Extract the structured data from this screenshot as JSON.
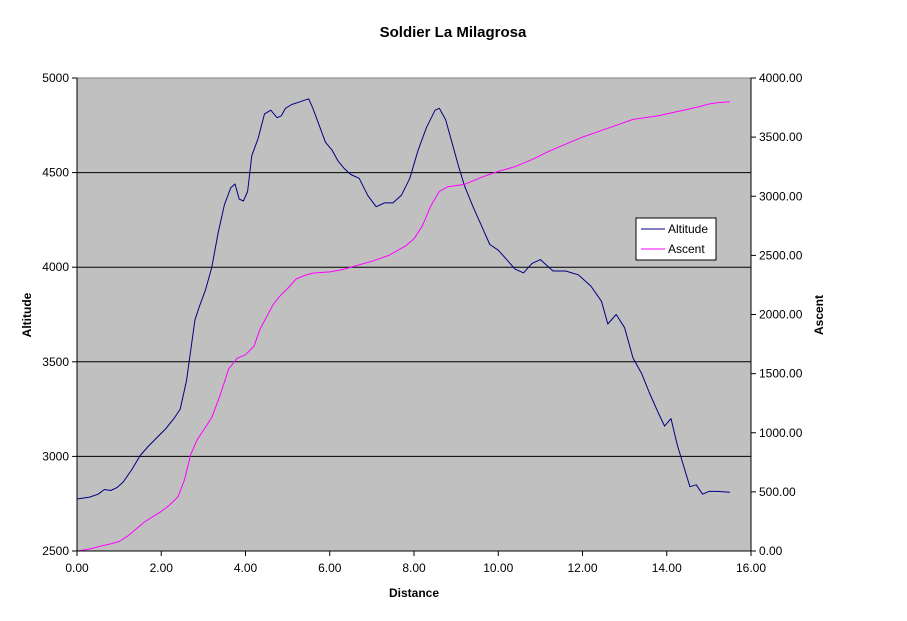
{
  "chart_data": {
    "type": "line",
    "title": "Soldier La Milagrosa",
    "xlabel": "Distance",
    "ylabel_left": "Altitude",
    "ylabel_right": "Ascent",
    "xlim": [
      0,
      16
    ],
    "ylim_left": [
      2500,
      5000
    ],
    "ylim_right": [
      0,
      4000
    ],
    "x_ticks": [
      "0.00",
      "2.00",
      "4.00",
      "6.00",
      "8.00",
      "10.00",
      "12.00",
      "14.00",
      "16.00"
    ],
    "y_left_ticks": [
      "2500",
      "3000",
      "3500",
      "4000",
      "4500",
      "5000"
    ],
    "y_right_ticks": [
      "0.00",
      "500.00",
      "1000.00",
      "1500.00",
      "2000.00",
      "2500.00",
      "3000.00",
      "3500.00",
      "4000.00"
    ],
    "plot_background": "#c0c0c0",
    "grid": "horizontal major lines on left axis",
    "legend_position": "right",
    "series": [
      {
        "name": "Altitude",
        "axis": "left",
        "color": "#000080",
        "x": [
          0,
          0.3,
          0.5,
          0.65,
          0.8,
          0.95,
          1.1,
          1.3,
          1.5,
          1.7,
          1.9,
          2.1,
          2.3,
          2.45,
          2.6,
          2.7,
          2.8,
          2.9,
          3.05,
          3.2,
          3.35,
          3.5,
          3.65,
          3.75,
          3.85,
          3.95,
          4.05,
          4.15,
          4.3,
          4.45,
          4.6,
          4.75,
          4.85,
          4.95,
          5.1,
          5.3,
          5.5,
          5.6,
          5.75,
          5.9,
          6.05,
          6.2,
          6.35,
          6.5,
          6.7,
          6.9,
          7.1,
          7.3,
          7.5,
          7.7,
          7.9,
          8.1,
          8.3,
          8.5,
          8.6,
          8.75,
          8.9,
          9.05,
          9.2,
          9.4,
          9.6,
          9.8,
          10.0,
          10.2,
          10.4,
          10.6,
          10.8,
          11.0,
          11.3,
          11.6,
          11.9,
          12.2,
          12.45,
          12.6,
          12.8,
          13.0,
          13.2,
          13.4,
          13.6,
          13.8,
          13.95,
          14.1,
          14.25,
          14.4,
          14.55,
          14.7,
          14.85,
          15.0,
          15.2,
          15.5
        ],
        "values": [
          2775,
          2785,
          2800,
          2825,
          2820,
          2835,
          2865,
          2930,
          3005,
          3055,
          3100,
          3145,
          3200,
          3250,
          3400,
          3560,
          3720,
          3790,
          3880,
          4000,
          4180,
          4330,
          4420,
          4440,
          4360,
          4350,
          4400,
          4590,
          4680,
          4810,
          4830,
          4790,
          4800,
          4840,
          4860,
          4875,
          4890,
          4840,
          4750,
          4660,
          4620,
          4560,
          4520,
          4490,
          4470,
          4380,
          4320,
          4340,
          4340,
          4380,
          4470,
          4620,
          4740,
          4830,
          4840,
          4780,
          4660,
          4540,
          4430,
          4320,
          4220,
          4120,
          4090,
          4040,
          3990,
          3970,
          4020,
          4040,
          3980,
          3980,
          3960,
          3900,
          3820,
          3700,
          3750,
          3680,
          3520,
          3440,
          3330,
          3230,
          3160,
          3200,
          3060,
          2950,
          2840,
          2850,
          2800,
          2815,
          2815,
          2810
        ]
      },
      {
        "name": "Ascent",
        "axis": "right",
        "color": "#ff00ff",
        "x": [
          0,
          0.2,
          0.4,
          0.6,
          0.8,
          1.0,
          1.2,
          1.4,
          1.6,
          1.8,
          2.0,
          2.2,
          2.4,
          2.55,
          2.7,
          2.85,
          3.0,
          3.2,
          3.4,
          3.6,
          3.8,
          4.0,
          4.2,
          4.35,
          4.5,
          4.65,
          4.8,
          5.0,
          5.2,
          5.4,
          5.6,
          6.0,
          6.3,
          6.6,
          7.0,
          7.4,
          7.8,
          8.0,
          8.2,
          8.4,
          8.6,
          8.8,
          9.2,
          9.6,
          10.0,
          10.4,
          10.8,
          11.2,
          11.6,
          12.0,
          12.4,
          12.8,
          13.2,
          13.8,
          14.3,
          14.8,
          15.0,
          15.2,
          15.5
        ],
        "values": [
          0,
          10,
          25,
          45,
          60,
          80,
          125,
          185,
          245,
          290,
          335,
          390,
          460,
          600,
          815,
          940,
          1020,
          1130,
          1320,
          1540,
          1630,
          1660,
          1730,
          1880,
          1980,
          2080,
          2150,
          2220,
          2300,
          2330,
          2350,
          2360,
          2380,
          2410,
          2450,
          2500,
          2580,
          2640,
          2750,
          2920,
          3040,
          3080,
          3100,
          3160,
          3210,
          3250,
          3310,
          3380,
          3440,
          3500,
          3550,
          3600,
          3650,
          3680,
          3720,
          3760,
          3780,
          3790,
          3800
        ]
      }
    ]
  }
}
